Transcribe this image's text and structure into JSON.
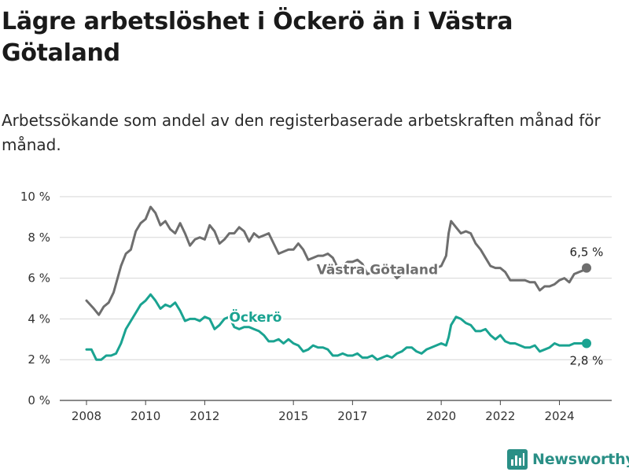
{
  "title": "Lägre arbetslöshet i Öckerö än i Västra Götaland",
  "subtitle": "Arbetssökande som andel av den registerbaserade arbetskraften månad för månad.",
  "brand": {
    "name": "Newsworthy",
    "icon": "bar-chart-icon"
  },
  "chart_data": {
    "type": "line",
    "title": "Lägre arbetslöshet i Öckerö än i Västra Götaland",
    "subtitle": "Arbetssökande som andel av den registerbaserade arbetskraften månad för månad.",
    "xlabel": "",
    "ylabel": "",
    "x_range": [
      "2008-01",
      "2024-12"
    ],
    "ylim": [
      0,
      10
    ],
    "y_ticks": [
      0,
      2,
      4,
      6,
      8,
      10
    ],
    "y_tick_labels": [
      "0 %",
      "2 %",
      "4 %",
      "6 %",
      "8 %",
      "10 %"
    ],
    "x_ticks": [
      "2008",
      "2010",
      "2012",
      "2015",
      "2017",
      "2020",
      "2022",
      "2024"
    ],
    "grid": "horizontal",
    "legend": "inline labels",
    "series": [
      {
        "name": "Västra Götaland",
        "color": "#6e6e6e",
        "end_label": "6,5 %",
        "points": [
          [
            "2008-01",
            4.9
          ],
          [
            "2008-04",
            4.5
          ],
          [
            "2008-06",
            4.2
          ],
          [
            "2008-08",
            4.6
          ],
          [
            "2008-10",
            4.8
          ],
          [
            "2008-12",
            5.3
          ],
          [
            "2009-03",
            6.6
          ],
          [
            "2009-05",
            7.2
          ],
          [
            "2009-07",
            7.4
          ],
          [
            "2009-09",
            8.3
          ],
          [
            "2009-11",
            8.7
          ],
          [
            "2010-01",
            8.9
          ],
          [
            "2010-03",
            9.5
          ],
          [
            "2010-05",
            9.2
          ],
          [
            "2010-07",
            8.6
          ],
          [
            "2010-09",
            8.8
          ],
          [
            "2010-11",
            8.4
          ],
          [
            "2011-01",
            8.2
          ],
          [
            "2011-03",
            8.7
          ],
          [
            "2011-05",
            8.2
          ],
          [
            "2011-07",
            7.6
          ],
          [
            "2011-09",
            7.9
          ],
          [
            "2011-11",
            8.0
          ],
          [
            "2012-01",
            7.9
          ],
          [
            "2012-03",
            8.6
          ],
          [
            "2012-05",
            8.3
          ],
          [
            "2012-07",
            7.7
          ],
          [
            "2012-09",
            7.9
          ],
          [
            "2012-11",
            8.2
          ],
          [
            "2013-01",
            8.2
          ],
          [
            "2013-03",
            8.5
          ],
          [
            "2013-05",
            8.3
          ],
          [
            "2013-07",
            7.8
          ],
          [
            "2013-09",
            8.2
          ],
          [
            "2013-11",
            8.0
          ],
          [
            "2014-01",
            8.1
          ],
          [
            "2014-03",
            8.2
          ],
          [
            "2014-05",
            7.7
          ],
          [
            "2014-07",
            7.2
          ],
          [
            "2014-09",
            7.3
          ],
          [
            "2014-11",
            7.4
          ],
          [
            "2015-01",
            7.4
          ],
          [
            "2015-03",
            7.7
          ],
          [
            "2015-05",
            7.4
          ],
          [
            "2015-07",
            6.9
          ],
          [
            "2015-09",
            7.0
          ],
          [
            "2015-11",
            7.1
          ],
          [
            "2016-01",
            7.1
          ],
          [
            "2016-03",
            7.2
          ],
          [
            "2016-05",
            7.0
          ],
          [
            "2016-07",
            6.5
          ],
          [
            "2016-09",
            6.6
          ],
          [
            "2016-11",
            6.8
          ],
          [
            "2017-01",
            6.8
          ],
          [
            "2017-03",
            6.9
          ],
          [
            "2017-05",
            6.7
          ],
          [
            "2017-07",
            6.2
          ],
          [
            "2017-09",
            6.3
          ],
          [
            "2017-11",
            6.4
          ],
          [
            "2018-01",
            6.5
          ],
          [
            "2018-03",
            6.5
          ],
          [
            "2018-05",
            6.3
          ],
          [
            "2018-07",
            6.0
          ],
          [
            "2018-09",
            6.2
          ],
          [
            "2018-11",
            6.3
          ],
          [
            "2019-01",
            6.3
          ],
          [
            "2019-03",
            6.4
          ],
          [
            "2019-05",
            6.3
          ],
          [
            "2019-07",
            6.2
          ],
          [
            "2019-09",
            6.4
          ],
          [
            "2019-11",
            6.5
          ],
          [
            "2020-01",
            6.6
          ],
          [
            "2020-03",
            7.1
          ],
          [
            "2020-04",
            8.2
          ],
          [
            "2020-05",
            8.8
          ],
          [
            "2020-07",
            8.5
          ],
          [
            "2020-09",
            8.2
          ],
          [
            "2020-11",
            8.3
          ],
          [
            "2021-01",
            8.2
          ],
          [
            "2021-03",
            7.7
          ],
          [
            "2021-05",
            7.4
          ],
          [
            "2021-07",
            7.0
          ],
          [
            "2021-09",
            6.6
          ],
          [
            "2021-11",
            6.5
          ],
          [
            "2022-01",
            6.5
          ],
          [
            "2022-03",
            6.3
          ],
          [
            "2022-05",
            5.9
          ],
          [
            "2022-07",
            5.9
          ],
          [
            "2022-09",
            5.9
          ],
          [
            "2022-11",
            5.9
          ],
          [
            "2023-01",
            5.8
          ],
          [
            "2023-03",
            5.8
          ],
          [
            "2023-05",
            5.4
          ],
          [
            "2023-07",
            5.6
          ],
          [
            "2023-09",
            5.6
          ],
          [
            "2023-11",
            5.7
          ],
          [
            "2024-01",
            5.9
          ],
          [
            "2024-03",
            6.0
          ],
          [
            "2024-05",
            5.8
          ],
          [
            "2024-07",
            6.2
          ],
          [
            "2024-09",
            6.3
          ],
          [
            "2024-11",
            6.4
          ],
          [
            "2024-12",
            6.5
          ]
        ]
      },
      {
        "name": "Öckerö",
        "color": "#1aa391",
        "end_label": "2,8 %",
        "points": [
          [
            "2008-01",
            2.5
          ],
          [
            "2008-03",
            2.5
          ],
          [
            "2008-05",
            2.0
          ],
          [
            "2008-07",
            2.0
          ],
          [
            "2008-09",
            2.2
          ],
          [
            "2008-11",
            2.2
          ],
          [
            "2009-01",
            2.3
          ],
          [
            "2009-03",
            2.8
          ],
          [
            "2009-05",
            3.5
          ],
          [
            "2009-07",
            3.9
          ],
          [
            "2009-09",
            4.3
          ],
          [
            "2009-11",
            4.7
          ],
          [
            "2010-01",
            4.9
          ],
          [
            "2010-03",
            5.2
          ],
          [
            "2010-05",
            4.9
          ],
          [
            "2010-07",
            4.5
          ],
          [
            "2010-09",
            4.7
          ],
          [
            "2010-11",
            4.6
          ],
          [
            "2011-01",
            4.8
          ],
          [
            "2011-03",
            4.4
          ],
          [
            "2011-05",
            3.9
          ],
          [
            "2011-07",
            4.0
          ],
          [
            "2011-09",
            4.0
          ],
          [
            "2011-11",
            3.9
          ],
          [
            "2012-01",
            4.1
          ],
          [
            "2012-03",
            4.0
          ],
          [
            "2012-05",
            3.5
          ],
          [
            "2012-07",
            3.7
          ],
          [
            "2012-09",
            4.0
          ],
          [
            "2012-11",
            4.1
          ],
          [
            "2013-01",
            3.6
          ],
          [
            "2013-03",
            3.5
          ],
          [
            "2013-05",
            3.6
          ],
          [
            "2013-07",
            3.6
          ],
          [
            "2013-09",
            3.5
          ],
          [
            "2013-11",
            3.4
          ],
          [
            "2014-01",
            3.2
          ],
          [
            "2014-03",
            2.9
          ],
          [
            "2014-05",
            2.9
          ],
          [
            "2014-07",
            3.0
          ],
          [
            "2014-09",
            2.8
          ],
          [
            "2014-11",
            3.0
          ],
          [
            "2015-01",
            2.8
          ],
          [
            "2015-03",
            2.7
          ],
          [
            "2015-05",
            2.4
          ],
          [
            "2015-07",
            2.5
          ],
          [
            "2015-09",
            2.7
          ],
          [
            "2015-11",
            2.6
          ],
          [
            "2016-01",
            2.6
          ],
          [
            "2016-03",
            2.5
          ],
          [
            "2016-05",
            2.2
          ],
          [
            "2016-07",
            2.2
          ],
          [
            "2016-09",
            2.3
          ],
          [
            "2016-11",
            2.2
          ],
          [
            "2017-01",
            2.2
          ],
          [
            "2017-03",
            2.3
          ],
          [
            "2017-05",
            2.1
          ],
          [
            "2017-07",
            2.1
          ],
          [
            "2017-09",
            2.2
          ],
          [
            "2017-11",
            2.0
          ],
          [
            "2018-01",
            2.1
          ],
          [
            "2018-03",
            2.2
          ],
          [
            "2018-05",
            2.1
          ],
          [
            "2018-07",
            2.3
          ],
          [
            "2018-09",
            2.4
          ],
          [
            "2018-11",
            2.6
          ],
          [
            "2019-01",
            2.6
          ],
          [
            "2019-03",
            2.4
          ],
          [
            "2019-05",
            2.3
          ],
          [
            "2019-07",
            2.5
          ],
          [
            "2019-09",
            2.6
          ],
          [
            "2019-11",
            2.7
          ],
          [
            "2020-01",
            2.8
          ],
          [
            "2020-03",
            2.7
          ],
          [
            "2020-04",
            3.1
          ],
          [
            "2020-05",
            3.7
          ],
          [
            "2020-07",
            4.1
          ],
          [
            "2020-09",
            4.0
          ],
          [
            "2020-11",
            3.8
          ],
          [
            "2021-01",
            3.7
          ],
          [
            "2021-03",
            3.4
          ],
          [
            "2021-05",
            3.4
          ],
          [
            "2021-07",
            3.5
          ],
          [
            "2021-09",
            3.2
          ],
          [
            "2021-11",
            3.0
          ],
          [
            "2022-01",
            3.2
          ],
          [
            "2022-03",
            2.9
          ],
          [
            "2022-05",
            2.8
          ],
          [
            "2022-07",
            2.8
          ],
          [
            "2022-09",
            2.7
          ],
          [
            "2022-11",
            2.6
          ],
          [
            "2023-01",
            2.6
          ],
          [
            "2023-03",
            2.7
          ],
          [
            "2023-05",
            2.4
          ],
          [
            "2023-07",
            2.5
          ],
          [
            "2023-09",
            2.6
          ],
          [
            "2023-11",
            2.8
          ],
          [
            "2024-01",
            2.7
          ],
          [
            "2024-03",
            2.7
          ],
          [
            "2024-05",
            2.7
          ],
          [
            "2024-07",
            2.8
          ],
          [
            "2024-09",
            2.8
          ],
          [
            "2024-11",
            2.8
          ],
          [
            "2024-12",
            2.8
          ]
        ]
      }
    ]
  }
}
